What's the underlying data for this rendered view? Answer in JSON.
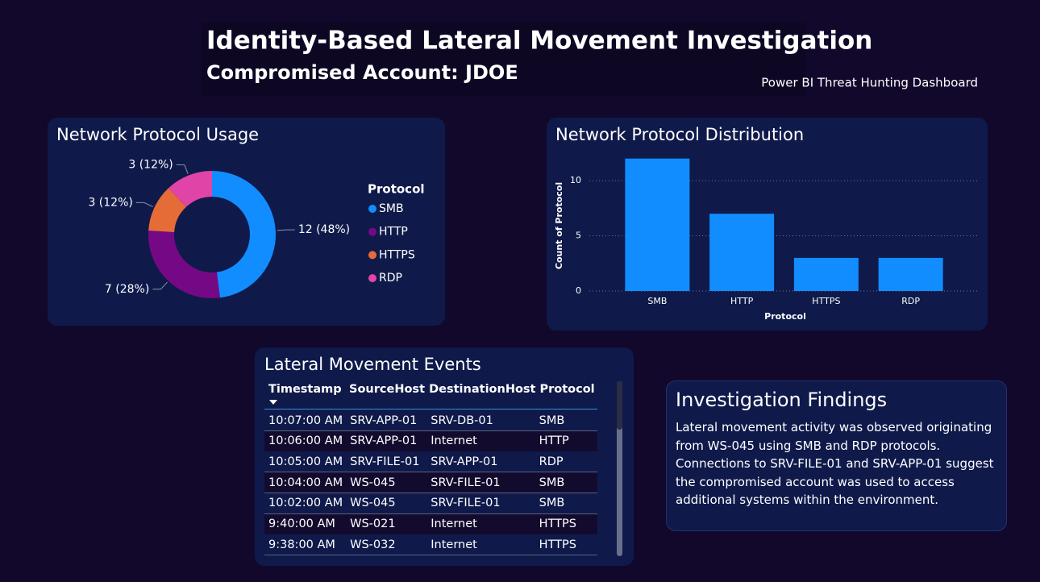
{
  "header": {
    "title": "Identity-Based Lateral Movement Investigation",
    "subtitle": "Compromised Account: JDOE",
    "caption": "Power BI Threat Hunting Dashboard"
  },
  "chart_data": [
    {
      "type": "donut",
      "title": "Network Protocol Usage",
      "legend_title": "Protocol",
      "categories": [
        "SMB",
        "HTTP",
        "HTTPS",
        "RDP"
      ],
      "values": [
        12,
        7,
        3,
        3
      ],
      "value_labels": [
        "12 (48%)",
        "7 (28%)",
        "3 (12%)",
        "3 (12%)"
      ],
      "colors": [
        "#118dff",
        "#750985",
        "#e66c37",
        "#e044a7"
      ]
    },
    {
      "type": "bar",
      "title": "Network Protocol Distribution",
      "x_label": "Protocol",
      "y_label": "Count of Protocol",
      "categories": [
        "SMB",
        "HTTP",
        "HTTPS",
        "RDP"
      ],
      "values": [
        12,
        7,
        3,
        3
      ],
      "color": "#118dff",
      "ylim": [
        0,
        13
      ],
      "yticks": [
        0,
        5,
        10
      ],
      "grid": true
    }
  ],
  "table": {
    "title": "Lateral Movement Events",
    "columns": [
      "Timestamp",
      "SourceHost",
      "DestinationHost",
      "Protocol"
    ],
    "rows": [
      [
        "10:07:00 AM",
        "SRV-APP-01",
        "SRV-DB-01",
        "SMB"
      ],
      [
        "10:06:00 AM",
        "SRV-APP-01",
        "Internet",
        "HTTP"
      ],
      [
        "10:05:00 AM",
        "SRV-FILE-01",
        "SRV-APP-01",
        "RDP"
      ],
      [
        "10:04:00 AM",
        "WS-045",
        "SRV-FILE-01",
        "SMB"
      ],
      [
        "10:02:00 AM",
        "WS-045",
        "SRV-FILE-01",
        "SMB"
      ],
      [
        "9:40:00 AM",
        "WS-021",
        "Internet",
        "HTTPS"
      ],
      [
        "9:38:00 AM",
        "WS-032",
        "Internet",
        "HTTPS"
      ]
    ]
  },
  "findings": {
    "title": "Investigation Findings",
    "text": "Lateral movement activity was observed originating from WS-045 using SMB and RDP protocols. Connections to SRV-FILE-01 and SRV-APP-01 suggest the compromised account was used to access additional systems within the environment."
  }
}
